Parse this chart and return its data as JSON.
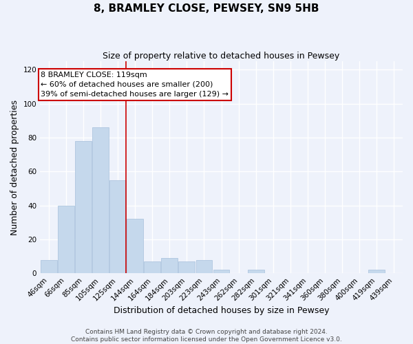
{
  "title": "8, BRAMLEY CLOSE, PEWSEY, SN9 5HB",
  "subtitle": "Size of property relative to detached houses in Pewsey",
  "xlabel": "Distribution of detached houses by size in Pewsey",
  "ylabel": "Number of detached properties",
  "bar_labels": [
    "46sqm",
    "66sqm",
    "85sqm",
    "105sqm",
    "125sqm",
    "144sqm",
    "164sqm",
    "184sqm",
    "203sqm",
    "223sqm",
    "243sqm",
    "262sqm",
    "282sqm",
    "301sqm",
    "321sqm",
    "341sqm",
    "360sqm",
    "380sqm",
    "400sqm",
    "419sqm",
    "439sqm"
  ],
  "bar_values": [
    8,
    40,
    78,
    86,
    55,
    32,
    7,
    9,
    7,
    8,
    2,
    0,
    2,
    0,
    0,
    0,
    0,
    0,
    0,
    2,
    0
  ],
  "bar_color": "#c5d8ec",
  "bar_edge_color": "#aec6df",
  "vline_bar_index": 4,
  "vline_color": "#cc0000",
  "ylim": [
    0,
    125
  ],
  "yticks": [
    0,
    20,
    40,
    60,
    80,
    100,
    120
  ],
  "annotation_line1": "8 BRAMLEY CLOSE: 119sqm",
  "annotation_line2": "← 60% of detached houses are smaller (200)",
  "annotation_line3": "39% of semi-detached houses are larger (129) →",
  "annotation_box_color": "#ffffff",
  "annotation_border_color": "#cc0000",
  "footer_line1": "Contains HM Land Registry data © Crown copyright and database right 2024.",
  "footer_line2": "Contains public sector information licensed under the Open Government Licence v3.0.",
  "background_color": "#eef2fb",
  "grid_color": "#ffffff",
  "title_fontsize": 11,
  "subtitle_fontsize": 9,
  "axis_label_fontsize": 9,
  "tick_fontsize": 7.5,
  "annotation_fontsize": 8,
  "footer_fontsize": 6.5
}
